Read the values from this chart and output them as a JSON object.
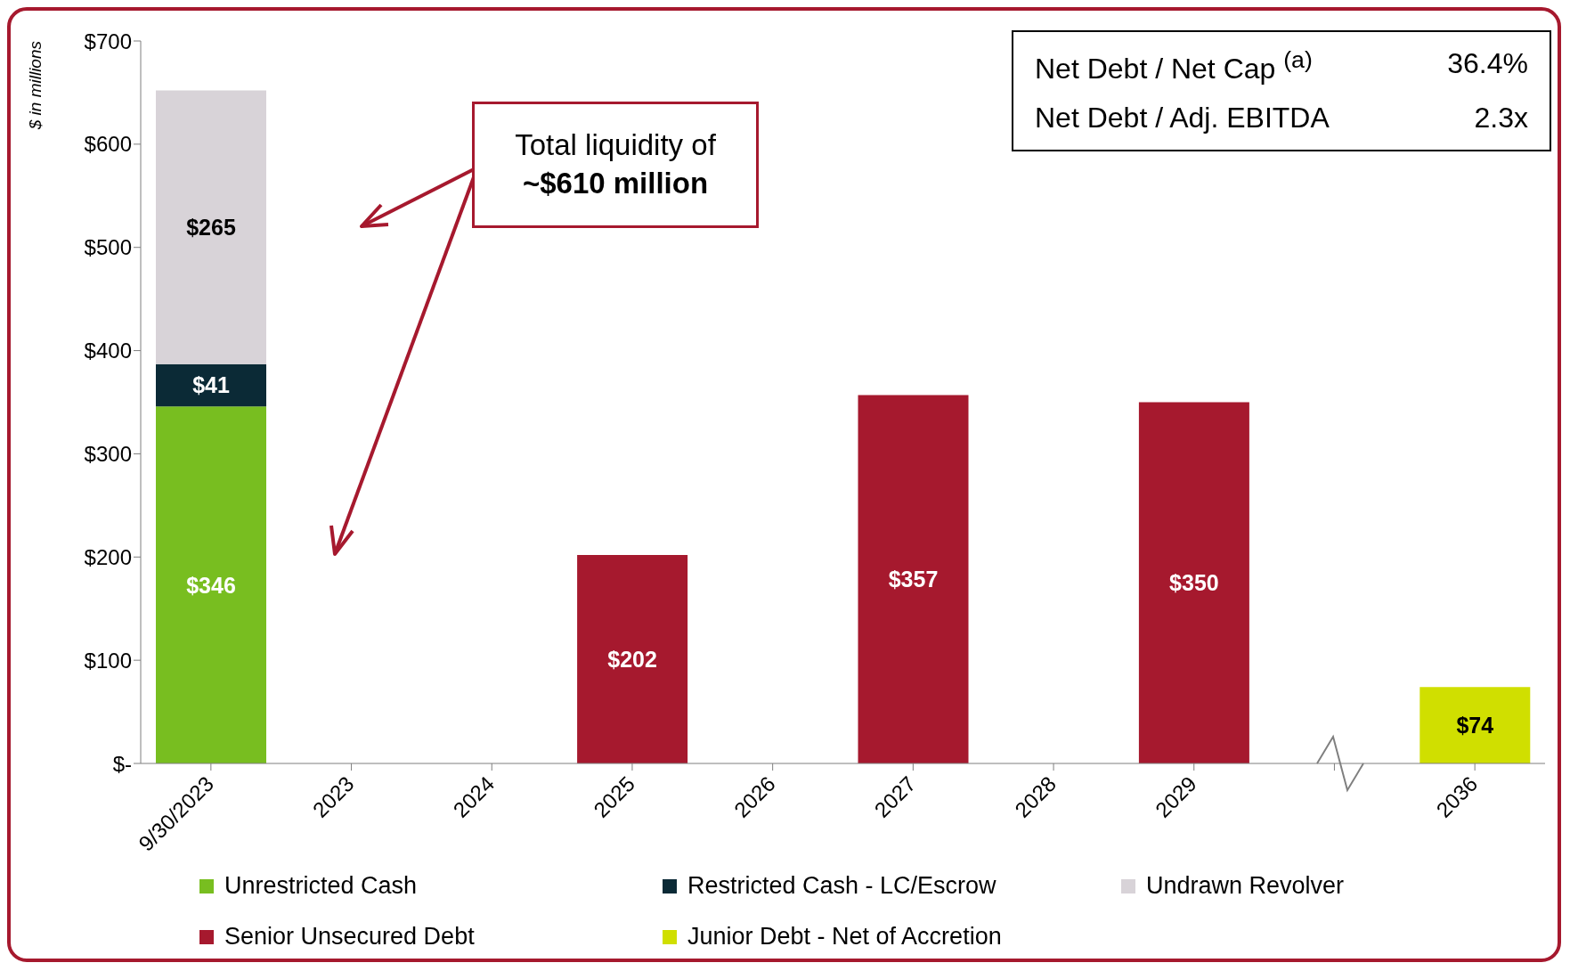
{
  "chart_data": {
    "type": "bar",
    "stacked": true,
    "ylabel": "$ in millions",
    "categories": [
      "9/30/2023",
      "2023",
      "2024",
      "2025",
      "2026",
      "2027",
      "2028",
      "2029",
      null,
      "2036"
    ],
    "series": [
      {
        "name": "Unrestricted Cash",
        "color": "#78be20",
        "values": [
          346,
          null,
          null,
          null,
          null,
          null,
          null,
          null,
          null,
          null
        ],
        "value_labels": [
          "$346",
          null,
          null,
          null,
          null,
          null,
          null,
          null,
          null,
          null
        ]
      },
      {
        "name": "Restricted Cash - LC/Escrow",
        "color": "#0b2a36",
        "values": [
          41,
          null,
          null,
          null,
          null,
          null,
          null,
          null,
          null,
          null
        ],
        "value_labels": [
          "$41",
          null,
          null,
          null,
          null,
          null,
          null,
          null,
          null,
          null
        ]
      },
      {
        "name": "Undrawn Revolver",
        "color": "#d8d3d8",
        "values": [
          265,
          null,
          null,
          null,
          null,
          null,
          null,
          null,
          null,
          null
        ],
        "value_labels": [
          "$265",
          null,
          null,
          null,
          null,
          null,
          null,
          null,
          null,
          null
        ]
      },
      {
        "name": "Senior Unsecured Debt",
        "color": "#a6192e",
        "values": [
          null,
          null,
          null,
          202,
          null,
          357,
          null,
          350,
          null,
          null
        ],
        "value_labels": [
          null,
          null,
          null,
          "$202",
          null,
          "$357",
          null,
          "$350",
          null,
          null
        ]
      },
      {
        "name": "Junior Debt - Net of Accretion",
        "color": "#d0df00",
        "values": [
          null,
          null,
          null,
          null,
          null,
          null,
          null,
          null,
          null,
          74
        ],
        "value_labels": [
          null,
          null,
          null,
          null,
          null,
          null,
          null,
          null,
          null,
          "$74"
        ]
      }
    ],
    "ylim": [
      0,
      700
    ],
    "yticks": [
      {
        "value": 0,
        "label": "$-"
      },
      {
        "value": 100,
        "label": "$100"
      },
      {
        "value": 200,
        "label": "$200"
      },
      {
        "value": 300,
        "label": "$300"
      },
      {
        "value": 400,
        "label": "$400"
      },
      {
        "value": 500,
        "label": "$500"
      },
      {
        "value": 600,
        "label": "$600"
      },
      {
        "value": 700,
        "label": "$700"
      }
    ],
    "grid": false,
    "legend": "bottom",
    "annotations": [
      "Total liquidity of **~$610 million**",
      "Net Debt / Net Cap $^{(a)}$",
      "36.4%",
      "Net Debt / Adj. EBITDA",
      "2.3x"
    ]
  }
}
